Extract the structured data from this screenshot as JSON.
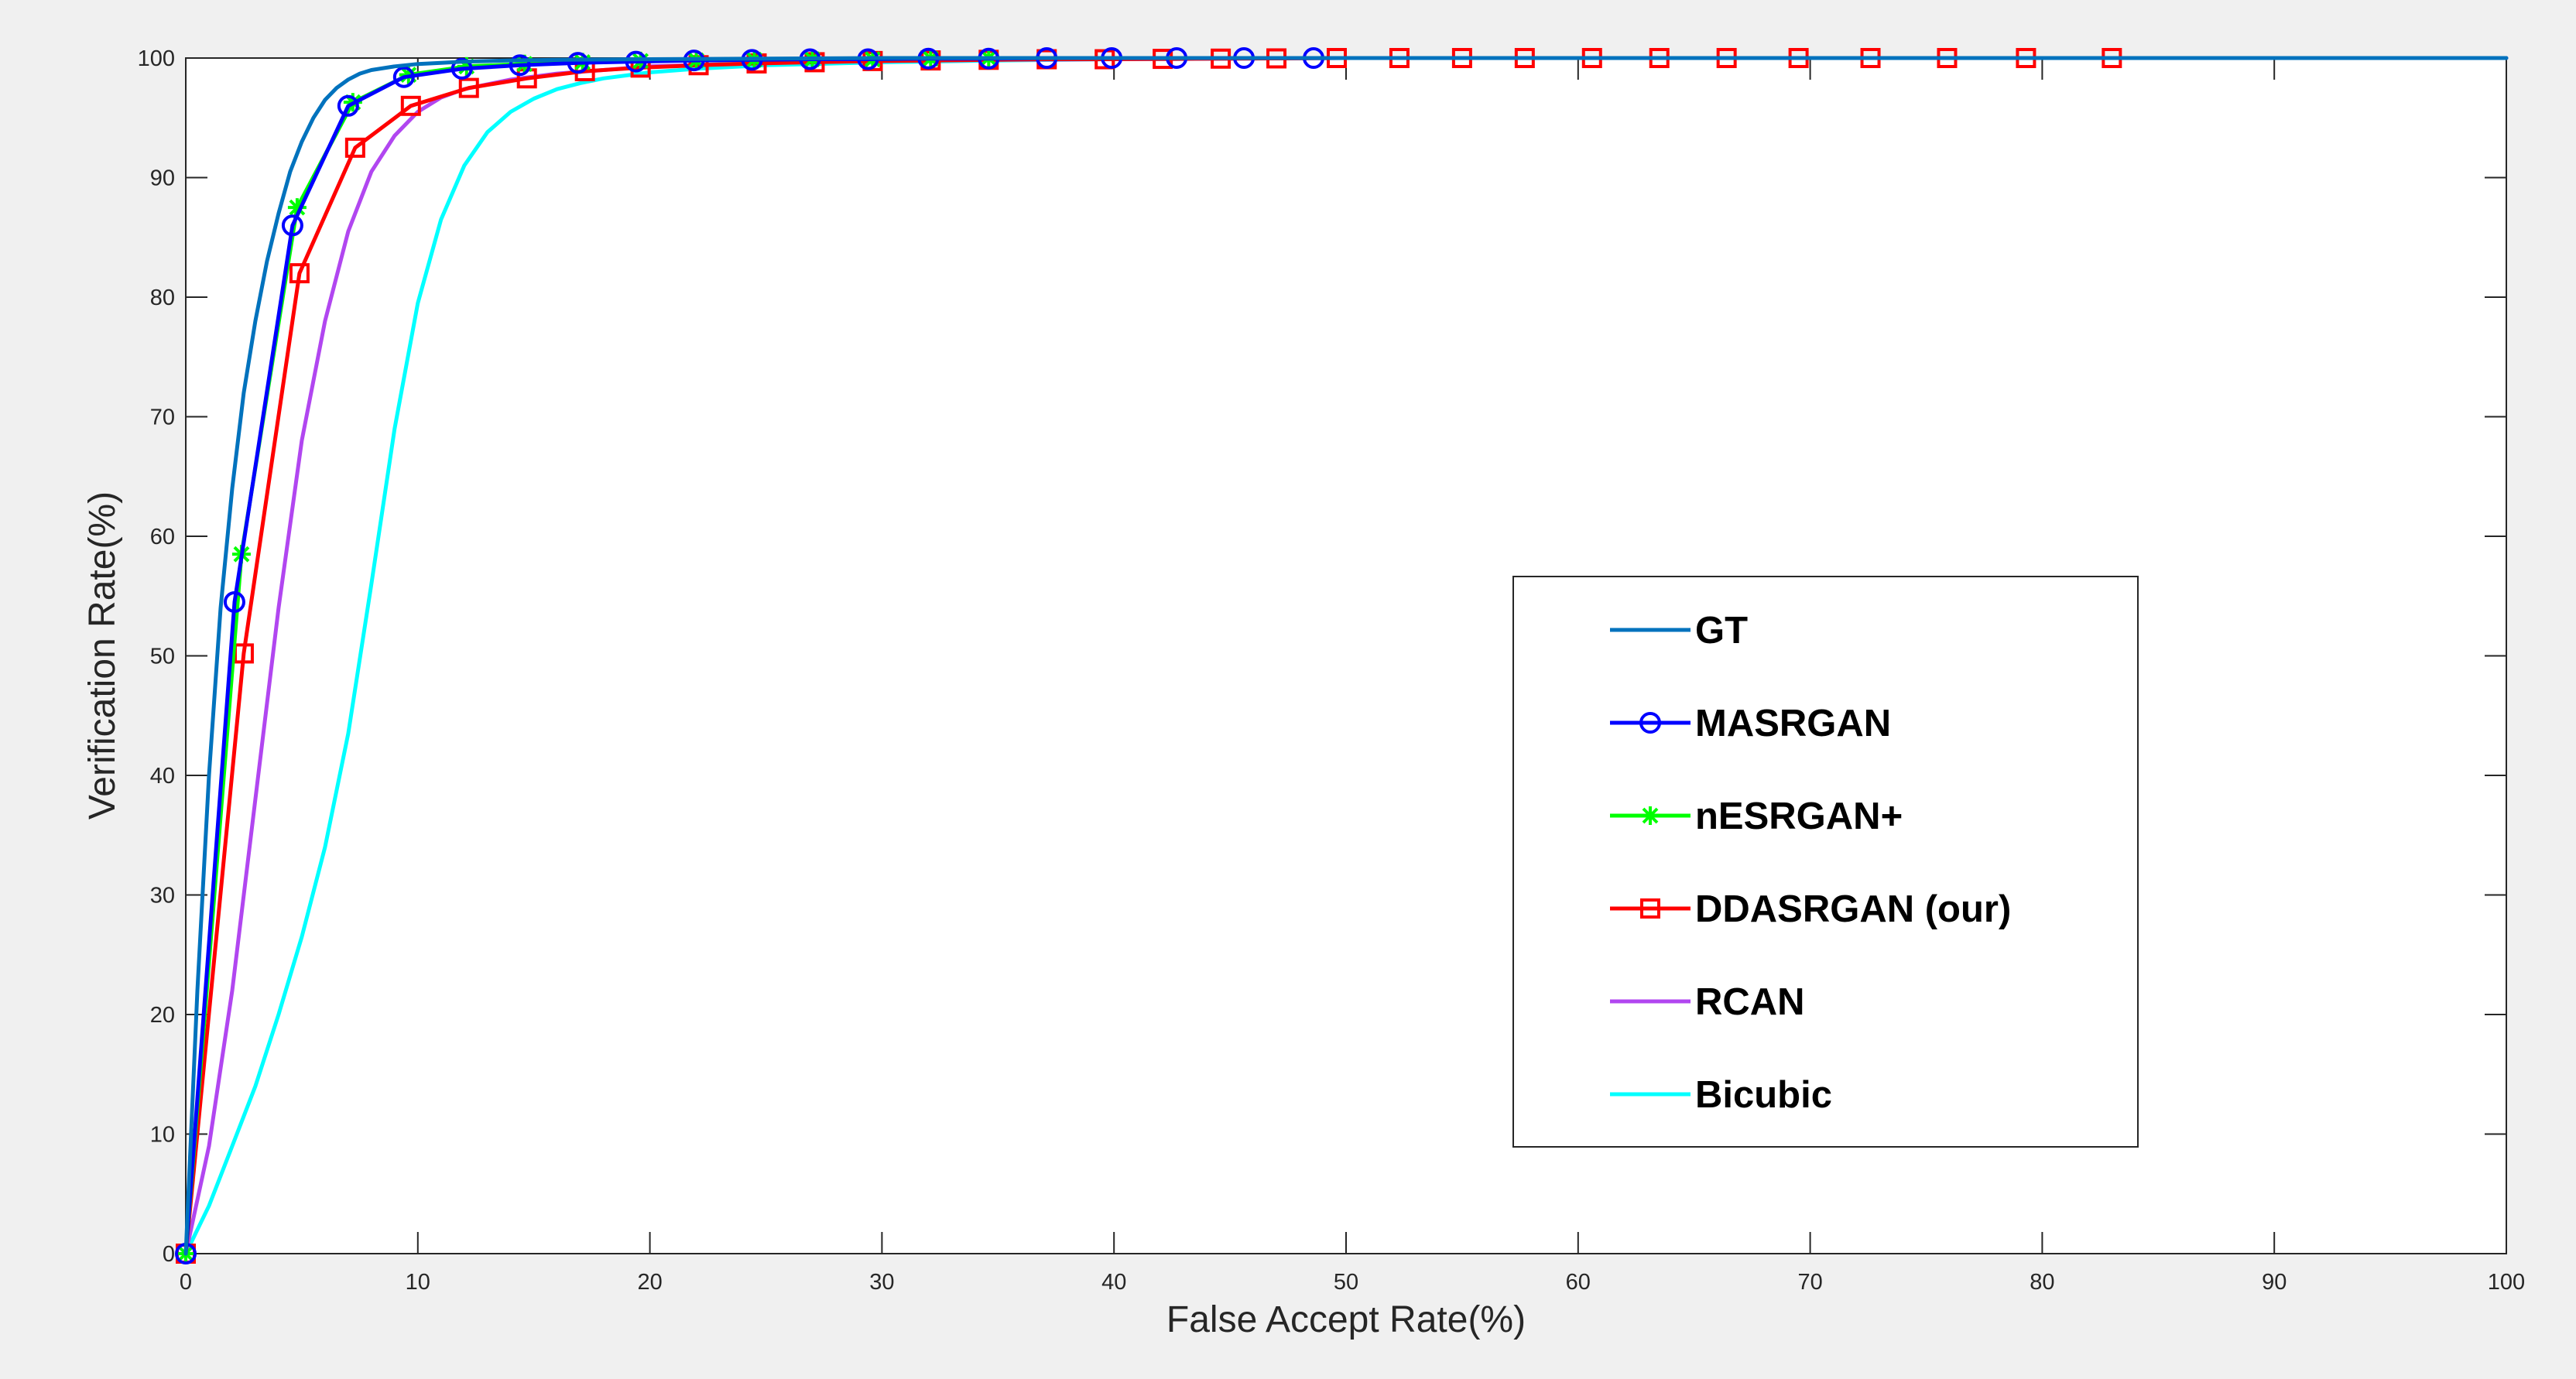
{
  "chart_data": {
    "type": "line",
    "xlabel": "False Accept Rate(%)",
    "ylabel": "Verification Rate(%)",
    "xlim": [
      0,
      100
    ],
    "ylim": [
      0,
      100
    ],
    "xticks": [
      0,
      10,
      20,
      30,
      40,
      50,
      60,
      70,
      80,
      90,
      100
    ],
    "yticks": [
      0,
      10,
      20,
      30,
      40,
      50,
      60,
      70,
      80,
      90,
      100
    ],
    "grid": false,
    "legend_position": "center-right",
    "series": [
      {
        "name": "GT",
        "color": "#0072BD",
        "marker": "none",
        "x": [
          0,
          0.5,
          1,
          1.5,
          2,
          2.5,
          3,
          3.5,
          4,
          4.5,
          5,
          5.5,
          6,
          6.5,
          7,
          7.5,
          8,
          9,
          10,
          11,
          12,
          14,
          16,
          20,
          25,
          30,
          40,
          50,
          60,
          70,
          80,
          90,
          100
        ],
        "y": [
          0,
          22,
          40,
          54,
          64,
          72,
          78,
          83,
          87,
          90.5,
          93,
          95,
          96.5,
          97.5,
          98.2,
          98.7,
          99.0,
          99.3,
          99.5,
          99.6,
          99.7,
          99.8,
          99.85,
          99.9,
          99.95,
          100,
          100,
          100,
          100,
          100,
          100,
          100,
          100
        ]
      },
      {
        "name": "MASRGAN",
        "color": "#0000FF",
        "marker": "circle",
        "x": [
          0,
          2.1,
          4.6,
          7.0,
          9.4,
          11.9,
          14.4,
          16.9,
          19.4,
          21.9,
          24.4,
          26.9,
          29.4,
          32.0,
          34.6,
          37.1,
          39.9,
          42.7,
          45.6,
          48.6
        ],
        "y": [
          0,
          54.5,
          86,
          96,
          98.4,
          99.1,
          99.4,
          99.6,
          99.7,
          99.8,
          99.85,
          99.9,
          99.9,
          99.95,
          99.95,
          100,
          100,
          100,
          100,
          100
        ]
      },
      {
        "name": "nESRGAN+",
        "color": "#00FF00",
        "marker": "star",
        "x": [
          0,
          2.4,
          4.8,
          7.2,
          9.6,
          12.1,
          14.6,
          17.1,
          19.6,
          22.0,
          24.5,
          27.0,
          29.6,
          32.1,
          34.6
        ],
        "y": [
          0,
          58.5,
          87.5,
          96.3,
          98.6,
          99.3,
          99.5,
          99.65,
          99.75,
          99.8,
          99.85,
          99.9,
          99.9,
          99.95,
          100
        ]
      },
      {
        "name": "DDASRGAN (our)",
        "color": "#FF0000",
        "marker": "square",
        "x": [
          0,
          2.5,
          4.9,
          7.3,
          9.7,
          12.2,
          14.7,
          17.2,
          19.6,
          22.1,
          24.6,
          27.1,
          29.6,
          32.1,
          34.6,
          37.1,
          39.6,
          42.1,
          44.6,
          47.0,
          49.6,
          52.3,
          55.0,
          57.7,
          60.6,
          63.5,
          66.4,
          69.5,
          72.6,
          75.9,
          79.3,
          83.0
        ],
        "y": [
          0,
          50.2,
          82,
          92.5,
          96,
          97.5,
          98.3,
          98.9,
          99.2,
          99.4,
          99.55,
          99.65,
          99.75,
          99.8,
          99.85,
          99.9,
          99.9,
          99.93,
          99.95,
          99.97,
          100,
          100,
          100,
          100,
          100,
          100,
          100,
          100,
          100,
          100,
          100,
          100
        ]
      },
      {
        "name": "RCAN",
        "color": "#B146F0",
        "marker": "none",
        "x": [
          0,
          1,
          2,
          3,
          4,
          5,
          6,
          7,
          8,
          9,
          10,
          11,
          12,
          14,
          16,
          18,
          20,
          25,
          30,
          35,
          40,
          50,
          60,
          70,
          80,
          90,
          100
        ],
        "y": [
          0,
          9,
          22,
          38,
          54,
          68,
          78,
          85.5,
          90.5,
          93.5,
          95.5,
          96.7,
          97.4,
          98.2,
          98.7,
          99.0,
          99.3,
          99.6,
          99.75,
          99.85,
          99.9,
          100,
          100,
          100,
          100,
          100,
          100
        ]
      },
      {
        "name": "Bicubic",
        "color": "#00FFFF",
        "marker": "none",
        "x": [
          0,
          1,
          2,
          3,
          4,
          5,
          6,
          7,
          8,
          9,
          10,
          11,
          12,
          13,
          14,
          15,
          16,
          17,
          18,
          20,
          22,
          25,
          30,
          35,
          40,
          50,
          60,
          70,
          80,
          90,
          100
        ],
        "y": [
          0,
          4,
          9,
          14,
          20,
          26.5,
          34,
          43.5,
          56,
          69,
          79.5,
          86.5,
          91,
          93.8,
          95.5,
          96.6,
          97.4,
          97.9,
          98.3,
          98.8,
          99.1,
          99.4,
          99.65,
          99.8,
          99.9,
          100,
          100,
          100,
          100,
          100,
          100
        ]
      }
    ]
  }
}
